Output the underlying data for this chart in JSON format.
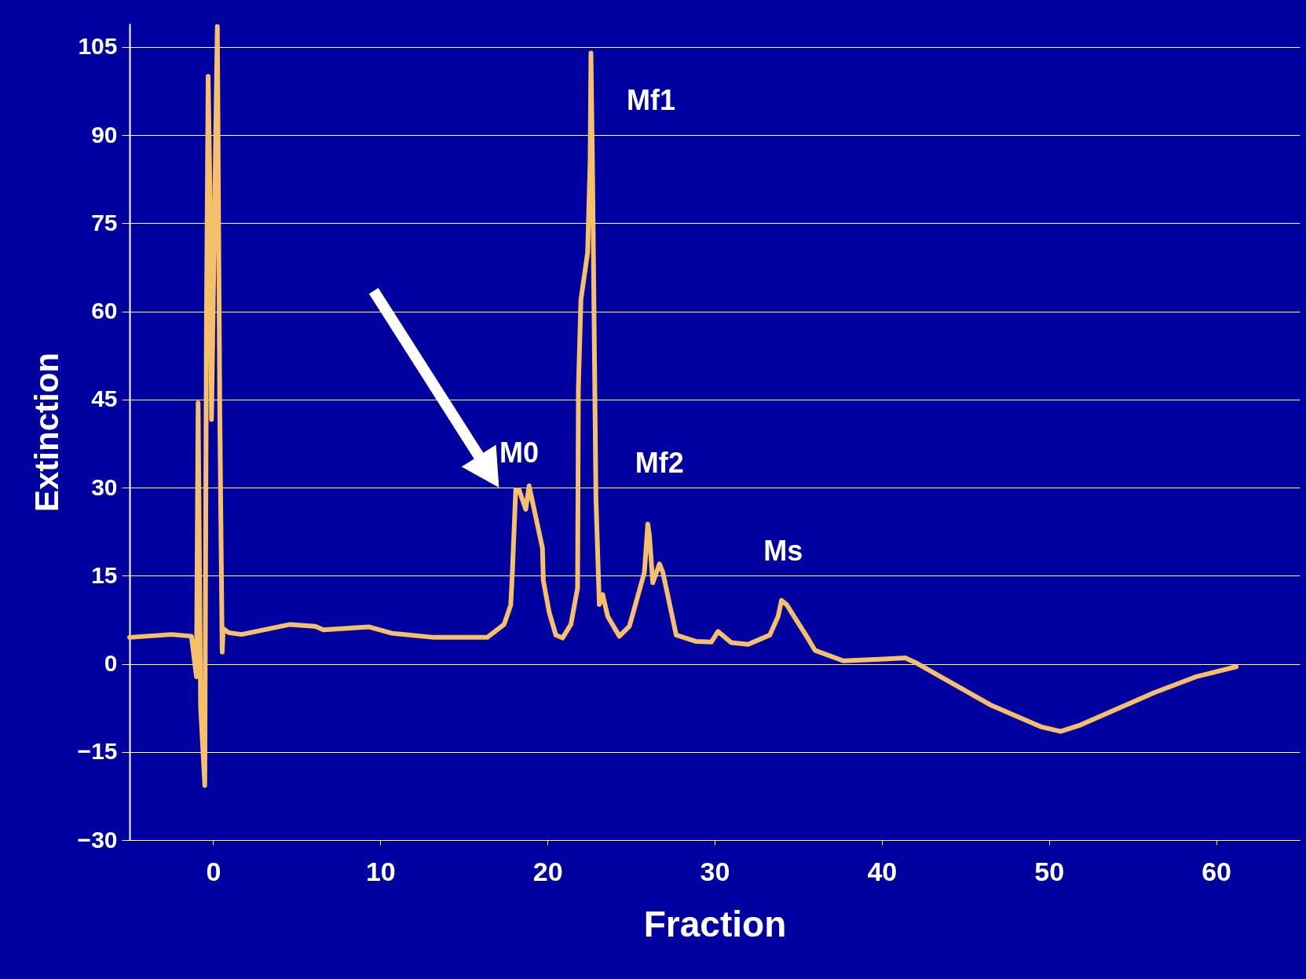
{
  "chart_data": {
    "type": "line",
    "xlabel": "Fraction",
    "ylabel": "Extinction",
    "xlim": [
      -5,
      65
    ],
    "ylim": [
      -30,
      109
    ],
    "xticks": [
      0,
      10,
      20,
      30,
      40,
      50,
      60
    ],
    "yticks": [
      -30,
      -15,
      0,
      15,
      30,
      45,
      60,
      75,
      90,
      105
    ],
    "grid": "y",
    "marker": "none",
    "line_style": "solid",
    "annotations": [
      "Mf1",
      "M0",
      "Mf2",
      "Ms"
    ],
    "series": [
      {
        "color": "#f6c06a",
        "x": [
          -5,
          -2.5,
          -1.3,
          -1.0,
          -0.9,
          -0.75,
          -0.5,
          -0.4,
          -0.3,
          -0.2,
          -0.1,
          0.25,
          0.4,
          0.54,
          0.6,
          0.93,
          1.7,
          3.4,
          4.6,
          6.1,
          6.6,
          9.3,
          10.7,
          13.2,
          15.1,
          16.4,
          17.4,
          17.8,
          17.9,
          18.1,
          18.3,
          18.7,
          18.9,
          19.7,
          19.75,
          20.1,
          20.5,
          20.9,
          21.4,
          21.8,
          21.85,
          22,
          22.4,
          22.55,
          22.6,
          22.7,
          22.9,
          23.1,
          23.3,
          23.6,
          24.3,
          24.9,
          25.4,
          25.8,
          26.0,
          26.1,
          26.3,
          26.7,
          26.9,
          27.7,
          28.9,
          29.8,
          30.2,
          31.0,
          32.0,
          33.3,
          33.8,
          34.0,
          34.3,
          35.5,
          36.0,
          37.7,
          40.1,
          41.4,
          42.1,
          46.5,
          49.5,
          50.7,
          51.9,
          53.4,
          56.3,
          58.8,
          61.2
        ],
        "values": [
          4.5,
          5,
          4.7,
          -2.2,
          44.4,
          -7.4,
          -20.7,
          58.8,
          100,
          82,
          41.6,
          108.5,
          41.6,
          2,
          6,
          5.3,
          5,
          6,
          6.7,
          6.4,
          5.8,
          6.3,
          5.2,
          4.5,
          4.5,
          4.5,
          6.7,
          10,
          15.6,
          29.6,
          29.6,
          26.3,
          30.3,
          19.7,
          14.2,
          8.8,
          4.9,
          4.4,
          6.7,
          12.9,
          47,
          62,
          70,
          85.5,
          104,
          82.7,
          28,
          10.1,
          11.8,
          8.1,
          4.7,
          6.4,
          11.5,
          15.6,
          23.8,
          21.8,
          13.8,
          17,
          15.6,
          4.9,
          3.8,
          3.7,
          5.5,
          3.6,
          3.3,
          4.9,
          8.1,
          10.8,
          10.1,
          4.7,
          2.3,
          0.5,
          0.8,
          1.0,
          0.1,
          -7,
          -10.7,
          -11.5,
          -10.4,
          -8.5,
          -4.9,
          -2.2,
          -0.5
        ]
      }
    ]
  }
}
